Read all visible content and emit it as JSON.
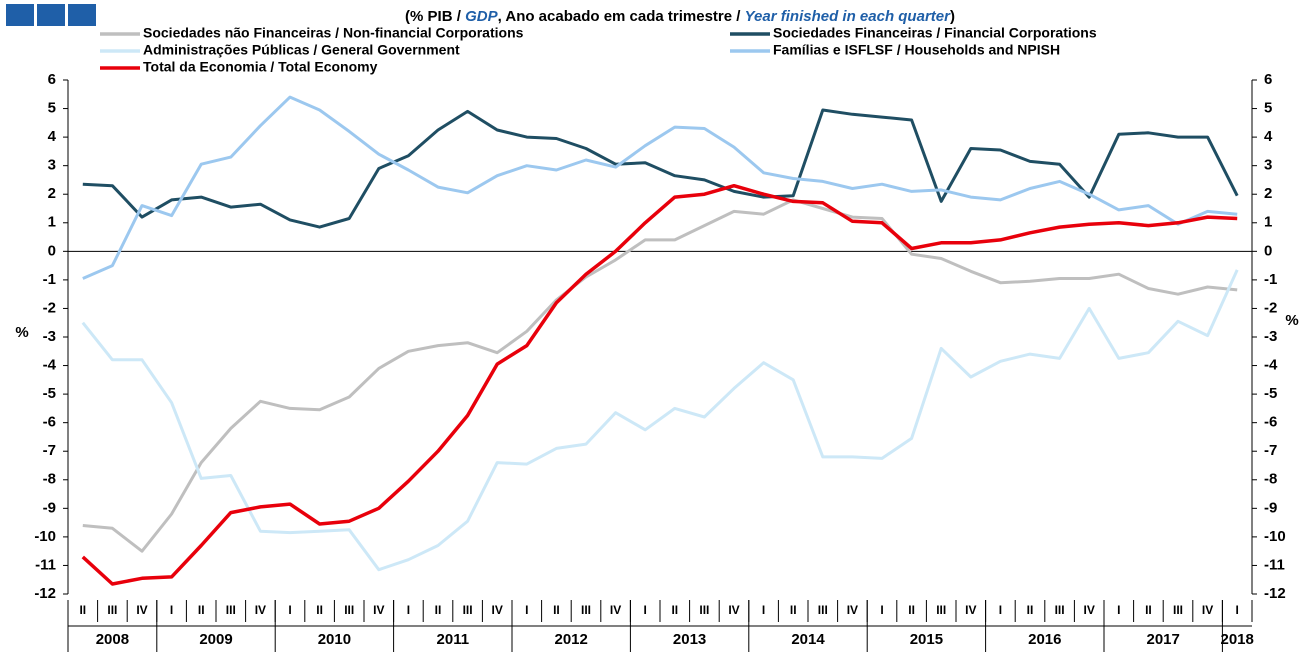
{
  "chart_data": {
    "type": "line",
    "title_parts": [
      "(% PIB / ",
      "GDP",
      ", Ano acabado em cada trimestre / ",
      "Year finished in each quarter",
      ")"
    ],
    "y_label": "%",
    "categories": [
      "II",
      "III",
      "IV",
      "I",
      "II",
      "III",
      "IV",
      "I",
      "II",
      "III",
      "IV",
      "I",
      "II",
      "III",
      "IV",
      "I",
      "II",
      "III",
      "IV",
      "I",
      "II",
      "III",
      "IV",
      "I",
      "II",
      "III",
      "IV",
      "I",
      "II",
      "III",
      "IV",
      "I",
      "II",
      "III",
      "IV",
      "I",
      "II",
      "III",
      "IV",
      "I"
    ],
    "years": [
      "2008",
      "2009",
      "2010",
      "2011",
      "2012",
      "2013",
      "2014",
      "2015",
      "2016",
      "2017",
      "2018"
    ],
    "ylim": [
      -12,
      6
    ],
    "yticks": [
      -12,
      -11,
      -10,
      -9,
      -8,
      -7,
      -6,
      -5,
      -4,
      -3,
      -2,
      -1,
      0,
      1,
      2,
      3,
      4,
      5,
      6
    ],
    "series": [
      {
        "name": "Sociedades não Financeiras / Non-financial Corporations",
        "color": "#bfbfbf",
        "values": [
          -9.6,
          -9.7,
          -10.5,
          -9.2,
          -7.4,
          -6.2,
          -5.25,
          -5.5,
          -5.55,
          -5.1,
          -4.1,
          -3.5,
          -3.3,
          -3.2,
          -3.55,
          -2.8,
          -1.7,
          -0.9,
          -0.3,
          0.4,
          0.4,
          0.9,
          1.4,
          1.3,
          1.8,
          1.5,
          1.2,
          1.15,
          -0.1,
          -0.25,
          -0.7,
          -1.1,
          -1.05,
          -0.95,
          -0.95,
          -0.8,
          -1.3,
          -1.5,
          -1.25,
          -1.35
        ]
      },
      {
        "name": "Sociedades Financeiras / Financial Corporations",
        "color": "#1f4e63",
        "values": [
          2.35,
          2.3,
          1.2,
          1.8,
          1.9,
          1.55,
          1.65,
          1.1,
          0.85,
          1.15,
          2.9,
          3.35,
          4.25,
          4.9,
          4.25,
          4.0,
          3.95,
          3.6,
          3.05,
          3.1,
          2.65,
          2.5,
          2.1,
          1.9,
          1.95,
          4.95,
          4.8,
          4.7,
          4.6,
          1.75,
          3.6,
          3.55,
          3.15,
          3.05,
          1.9,
          4.1,
          4.15,
          4.0,
          4.0,
          1.95
        ]
      },
      {
        "name": "Administrações Públicas / General Government",
        "color": "#cde8f7",
        "values": [
          -2.5,
          -3.8,
          -3.8,
          -5.3,
          -7.95,
          -7.85,
          -9.8,
          -9.85,
          -9.8,
          -9.75,
          -11.15,
          -10.8,
          -10.3,
          -9.45,
          -7.4,
          -7.45,
          -6.9,
          -6.75,
          -5.65,
          -6.25,
          -5.5,
          -5.8,
          -4.8,
          -3.9,
          -4.5,
          -7.2,
          -7.2,
          -7.25,
          -6.55,
          -3.4,
          -4.4,
          -3.85,
          -3.6,
          -3.75,
          -2.0,
          -3.75,
          -3.55,
          -2.45,
          -2.95,
          -0.65
        ]
      },
      {
        "name": "Famílias e ISFLSF / Households and NPISH",
        "color": "#9cc8ef",
        "values": [
          -0.95,
          -0.5,
          1.6,
          1.25,
          3.05,
          3.3,
          4.4,
          5.4,
          4.95,
          4.2,
          3.4,
          2.85,
          2.25,
          2.05,
          2.65,
          3.0,
          2.85,
          3.2,
          2.95,
          3.7,
          4.35,
          4.3,
          3.65,
          2.75,
          2.55,
          2.45,
          2.2,
          2.35,
          2.1,
          2.15,
          1.9,
          1.8,
          2.2,
          2.45,
          2.0,
          1.45,
          1.6,
          0.95,
          1.4,
          1.3
        ]
      },
      {
        "name": "Total da Economia / Total Economy",
        "color": "#e8000b",
        "values": [
          -10.7,
          -11.65,
          -11.45,
          -11.4,
          -10.3,
          -9.15,
          -8.95,
          -8.85,
          -9.55,
          -9.45,
          -9.0,
          -8.05,
          -7.0,
          -5.75,
          -3.95,
          -3.3,
          -1.8,
          -0.8,
          0.0,
          1.0,
          1.9,
          2.0,
          2.3,
          2.0,
          1.75,
          1.7,
          1.05,
          1.0,
          0.1,
          0.3,
          0.3,
          0.4,
          0.65,
          0.85,
          0.95,
          1.0,
          0.9,
          1.0,
          1.2,
          1.15
        ]
      }
    ]
  }
}
